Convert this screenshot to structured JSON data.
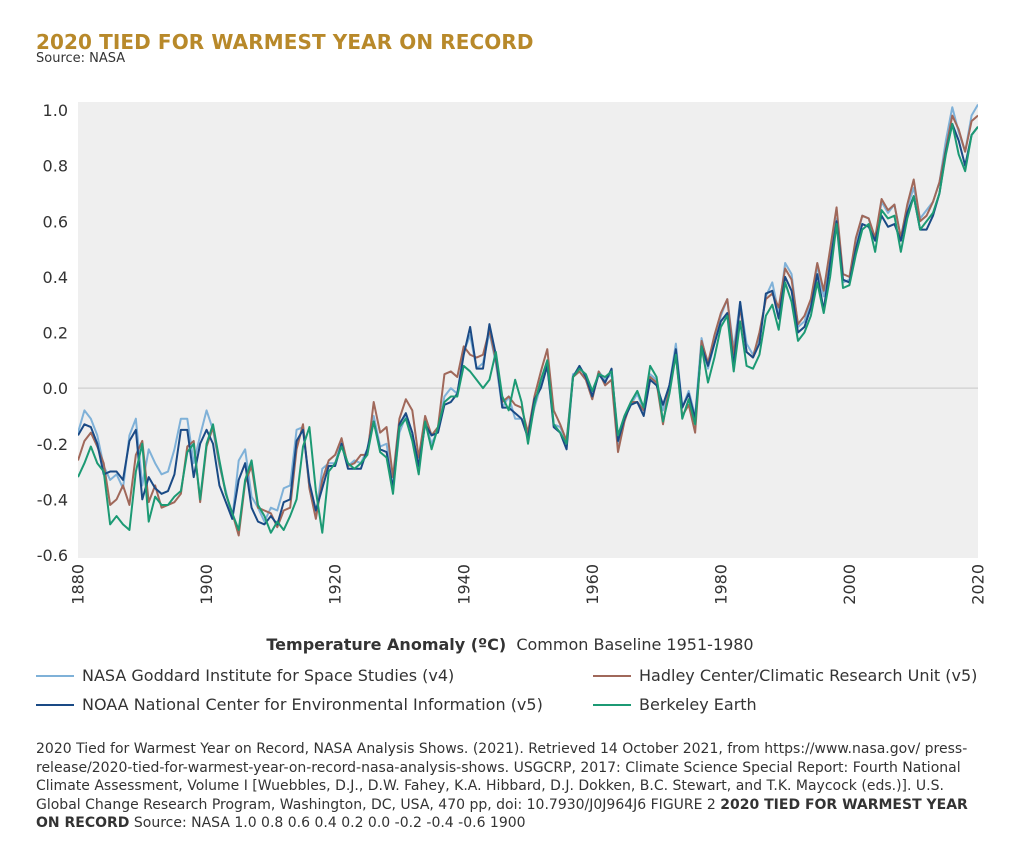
{
  "header": {
    "title": "2020 TIED FOR WARMEST YEAR ON RECORD",
    "source": "Source: NASA"
  },
  "colors": {
    "title": "#b8892a",
    "plot_bg": "#efefef",
    "nasa": "#7fb1d8",
    "noaa": "#1a4a85",
    "hadley": "#a0685a",
    "berkeley": "#1c9a74"
  },
  "chart_data": {
    "type": "line",
    "title": "2020 TIED FOR WARMEST YEAR ON RECORD",
    "subtitle": "Source: NASA",
    "xlabel": "Temperature Anomaly (ºC)",
    "xlabel_note": "Common Baseline 1951-1980",
    "ylabel": "",
    "xlim": [
      1880,
      2020
    ],
    "ylim": [
      -0.6,
      1.0
    ],
    "x_ticks": [
      "1880",
      "1900",
      "1920",
      "1940",
      "1960",
      "1980",
      "2000",
      "2020"
    ],
    "y_ticks": [
      "1.0",
      "0.8",
      "0.6",
      "0.4",
      "0.2",
      "0.0",
      "-0.2",
      "-0.4",
      "-0.6"
    ],
    "start_year": 1880,
    "grid": "horizontal zero line",
    "series": [
      {
        "name": "NASA Goddard Institute for Space Studies (v4)",
        "key": "nasa",
        "values": [
          -0.16,
          -0.08,
          -0.11,
          -0.17,
          -0.28,
          -0.33,
          -0.31,
          -0.36,
          -0.17,
          -0.11,
          -0.35,
          -0.22,
          -0.27,
          -0.31,
          -0.3,
          -0.22,
          -0.11,
          -0.11,
          -0.27,
          -0.17,
          -0.08,
          -0.15,
          -0.28,
          -0.37,
          -0.47,
          -0.26,
          -0.22,
          -0.39,
          -0.43,
          -0.48,
          -0.43,
          -0.44,
          -0.36,
          -0.35,
          -0.15,
          -0.14,
          -0.36,
          -0.46,
          -0.29,
          -0.27,
          -0.27,
          -0.19,
          -0.28,
          -0.26,
          -0.27,
          -0.22,
          -0.1,
          -0.21,
          -0.2,
          -0.36,
          -0.16,
          -0.1,
          -0.16,
          -0.29,
          -0.12,
          -0.2,
          -0.15,
          -0.03,
          0.0,
          -0.02,
          0.13,
          0.19,
          0.07,
          0.09,
          0.2,
          0.09,
          -0.07,
          -0.03,
          -0.11,
          -0.11,
          -0.17,
          -0.07,
          0.01,
          0.08,
          -0.13,
          -0.14,
          -0.19,
          0.05,
          0.06,
          0.03,
          -0.03,
          0.06,
          0.03,
          0.05,
          -0.2,
          -0.11,
          -0.06,
          -0.02,
          -0.08,
          0.05,
          0.03,
          -0.08,
          0.01,
          0.16,
          -0.07,
          -0.01,
          -0.1,
          0.18,
          0.07,
          0.16,
          0.26,
          0.32,
          0.14,
          0.31,
          0.16,
          0.12,
          0.18,
          0.33,
          0.38,
          0.27,
          0.45,
          0.41,
          0.22,
          0.24,
          0.31,
          0.44,
          0.33,
          0.46,
          0.61,
          0.38,
          0.39,
          0.53,
          0.62,
          0.61,
          0.53,
          0.67,
          0.63,
          0.66,
          0.54,
          0.65,
          0.72,
          0.61,
          0.64,
          0.67,
          0.74,
          0.89,
          1.01,
          0.92,
          0.85,
          0.98,
          1.02
        ]
      },
      {
        "name": "NOAA National Center for Environmental Information (v5)",
        "key": "noaa",
        "values": [
          -0.17,
          -0.13,
          -0.14,
          -0.2,
          -0.31,
          -0.3,
          -0.3,
          -0.33,
          -0.19,
          -0.15,
          -0.4,
          -0.32,
          -0.36,
          -0.38,
          -0.37,
          -0.31,
          -0.15,
          -0.15,
          -0.32,
          -0.2,
          -0.15,
          -0.2,
          -0.35,
          -0.41,
          -0.47,
          -0.33,
          -0.27,
          -0.43,
          -0.48,
          -0.49,
          -0.46,
          -0.49,
          -0.41,
          -0.4,
          -0.19,
          -0.15,
          -0.34,
          -0.44,
          -0.36,
          -0.28,
          -0.28,
          -0.2,
          -0.29,
          -0.29,
          -0.29,
          -0.22,
          -0.12,
          -0.22,
          -0.23,
          -0.36,
          -0.13,
          -0.09,
          -0.16,
          -0.28,
          -0.13,
          -0.17,
          -0.16,
          -0.06,
          -0.05,
          -0.02,
          0.12,
          0.22,
          0.07,
          0.07,
          0.23,
          0.12,
          -0.07,
          -0.07,
          -0.09,
          -0.11,
          -0.18,
          -0.04,
          0.0,
          0.08,
          -0.14,
          -0.16,
          -0.22,
          0.04,
          0.08,
          0.04,
          -0.03,
          0.05,
          0.02,
          0.07,
          -0.19,
          -0.11,
          -0.06,
          -0.05,
          -0.1,
          0.03,
          0.01,
          -0.06,
          0.01,
          0.14,
          -0.07,
          -0.02,
          -0.11,
          0.15,
          0.08,
          0.16,
          0.24,
          0.27,
          0.08,
          0.31,
          0.13,
          0.11,
          0.16,
          0.34,
          0.35,
          0.25,
          0.4,
          0.35,
          0.2,
          0.22,
          0.29,
          0.41,
          0.28,
          0.45,
          0.6,
          0.39,
          0.38,
          0.5,
          0.59,
          0.58,
          0.53,
          0.62,
          0.58,
          0.59,
          0.53,
          0.63,
          0.69,
          0.57,
          0.57,
          0.62,
          0.7,
          0.85,
          0.95,
          0.89,
          0.8,
          0.91,
          0.94
        ]
      },
      {
        "name": "Hadley Center/Climatic Research Unit (v5)",
        "key": "hadley",
        "values": [
          -0.26,
          -0.19,
          -0.16,
          -0.21,
          -0.27,
          -0.42,
          -0.4,
          -0.35,
          -0.42,
          -0.24,
          -0.19,
          -0.41,
          -0.35,
          -0.43,
          -0.42,
          -0.41,
          -0.38,
          -0.21,
          -0.19,
          -0.41,
          -0.21,
          -0.14,
          -0.27,
          -0.38,
          -0.45,
          -0.53,
          -0.34,
          -0.28,
          -0.43,
          -0.44,
          -0.45,
          -0.5,
          -0.44,
          -0.43,
          -0.22,
          -0.13,
          -0.36,
          -0.47,
          -0.33,
          -0.26,
          -0.24,
          -0.18,
          -0.28,
          -0.27,
          -0.24,
          -0.24,
          -0.05,
          -0.16,
          -0.14,
          -0.32,
          -0.11,
          -0.04,
          -0.08,
          -0.25,
          -0.1,
          -0.17,
          -0.14,
          0.05,
          0.06,
          0.04,
          0.15,
          0.12,
          0.11,
          0.12,
          0.21,
          0.1,
          -0.05,
          -0.03,
          -0.06,
          -0.07,
          -0.16,
          -0.03,
          0.06,
          0.14,
          -0.08,
          -0.13,
          -0.19,
          0.04,
          0.06,
          0.03,
          -0.04,
          0.06,
          0.01,
          0.03,
          -0.23,
          -0.12,
          -0.05,
          -0.05,
          -0.08,
          0.04,
          0.02,
          -0.13,
          0.01,
          0.12,
          -0.1,
          -0.06,
          -0.16,
          0.17,
          0.09,
          0.19,
          0.27,
          0.32,
          0.12,
          0.29,
          0.13,
          0.11,
          0.2,
          0.32,
          0.34,
          0.29,
          0.43,
          0.39,
          0.23,
          0.26,
          0.32,
          0.45,
          0.35,
          0.5,
          0.65,
          0.41,
          0.4,
          0.54,
          0.62,
          0.61,
          0.54,
          0.68,
          0.64,
          0.66,
          0.54,
          0.66,
          0.75,
          0.6,
          0.62,
          0.67,
          0.74,
          0.86,
          0.98,
          0.93,
          0.85,
          0.96,
          0.98
        ]
      },
      {
        "name": "Berkeley Earth",
        "key": "berkeley",
        "values": [
          -0.32,
          -0.27,
          -0.21,
          -0.27,
          -0.3,
          -0.49,
          -0.46,
          -0.49,
          -0.51,
          -0.3,
          -0.2,
          -0.48,
          -0.39,
          -0.42,
          -0.42,
          -0.39,
          -0.37,
          -0.23,
          -0.2,
          -0.4,
          -0.2,
          -0.13,
          -0.26,
          -0.38,
          -0.45,
          -0.51,
          -0.33,
          -0.26,
          -0.42,
          -0.46,
          -0.52,
          -0.48,
          -0.51,
          -0.46,
          -0.4,
          -0.21,
          -0.14,
          -0.37,
          -0.52,
          -0.3,
          -0.27,
          -0.21,
          -0.27,
          -0.29,
          -0.27,
          -0.24,
          -0.12,
          -0.23,
          -0.25,
          -0.38,
          -0.14,
          -0.11,
          -0.19,
          -0.31,
          -0.12,
          -0.22,
          -0.14,
          -0.05,
          -0.03,
          -0.03,
          0.08,
          0.06,
          0.03,
          0.0,
          0.03,
          0.13,
          -0.03,
          -0.08,
          0.03,
          -0.05,
          -0.2,
          -0.06,
          0.03,
          0.1,
          -0.13,
          -0.16,
          -0.2,
          0.04,
          0.07,
          0.05,
          -0.01,
          0.05,
          0.04,
          0.06,
          -0.17,
          -0.1,
          -0.05,
          -0.01,
          -0.07,
          0.08,
          0.04,
          -0.12,
          -0.02,
          0.12,
          -0.11,
          -0.04,
          -0.13,
          0.15,
          0.02,
          0.11,
          0.22,
          0.26,
          0.06,
          0.24,
          0.08,
          0.07,
          0.12,
          0.26,
          0.3,
          0.21,
          0.38,
          0.31,
          0.17,
          0.2,
          0.26,
          0.38,
          0.27,
          0.4,
          0.59,
          0.36,
          0.37,
          0.48,
          0.57,
          0.59,
          0.49,
          0.64,
          0.61,
          0.62,
          0.49,
          0.61,
          0.69,
          0.57,
          0.6,
          0.63,
          0.7,
          0.84,
          0.95,
          0.84,
          0.78,
          0.91,
          0.94
        ]
      }
    ]
  },
  "axis_title": {
    "bold": "Temperature Anomaly (ºC)",
    "note": "Common Baseline 1951-1980"
  },
  "legend": [
    {
      "label": "NASA Goddard Institute for Space Studies (v4)",
      "color": "#7fb1d8"
    },
    {
      "label": "Hadley Center/Climatic Research Unit (v5)",
      "color": "#a0685a"
    },
    {
      "label": "NOAA National Center for Environmental Information (v5)",
      "color": "#1a4a85"
    },
    {
      "label": "Berkeley Earth",
      "color": "#1c9a74"
    }
  ],
  "caption": {
    "text": "2020 Tied for Warmest Year on Record, NASA Analysis Shows. (2021). Retrieved 14 October 2021, from https://www.nasa.gov/ press-release/2020-tied-for-warmest-year-on-record-nasa-analysis-shows. USGCRP, 2017: Climate Science Special Report: Fourth National Climate Assessment, Volume I [Wuebbles, D.J., D.W. Fahey, K.A. Hibbard, D.J. Dokken, B.C. Stewart, and T.K. Maycock (eds.)]. U.S. Global Change Research Program, Washington, DC, USA, 470 pp, doi: 10.7930/J0J964J6 FIGURE 2 ",
    "bold": "2020 TIED FOR WARMEST YEAR ON RECORD",
    "tail": " Source: NASA 1.0 0.8 0.6 0.4 0.2 0.0 -0.2 -0.4 -0.6 1900"
  }
}
